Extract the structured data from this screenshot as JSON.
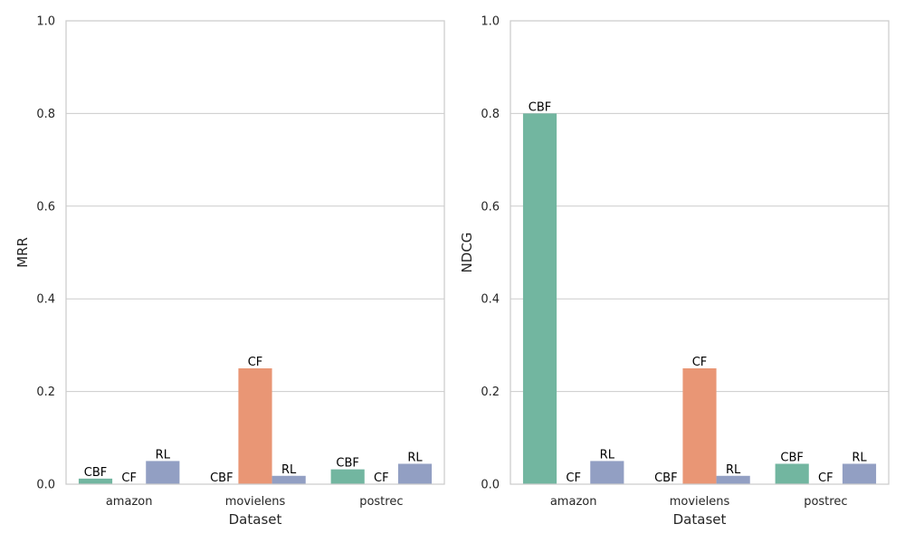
{
  "chart_data": [
    {
      "type": "bar",
      "xlabel": "Dataset",
      "ylabel": "MRR",
      "categories": [
        "amazon",
        "movielens",
        "postrec"
      ],
      "hue_order": [
        "CBF",
        "CF",
        "RL"
      ],
      "series": [
        {
          "name": "CBF",
          "values": [
            0.012,
            0.0,
            0.032
          ]
        },
        {
          "name": "CF",
          "values": [
            0.0,
            0.25,
            0.0
          ]
        },
        {
          "name": "RL",
          "values": [
            0.05,
            0.018,
            0.044
          ]
        }
      ],
      "ylim": [
        0,
        1.0
      ],
      "yticks": [
        "0.0",
        "0.2",
        "0.4",
        "0.6",
        "0.8",
        "1.0"
      ],
      "grid": "y",
      "legend": "none"
    },
    {
      "type": "bar",
      "xlabel": "Dataset",
      "ylabel": "NDCG",
      "categories": [
        "amazon",
        "movielens",
        "postrec"
      ],
      "hue_order": [
        "CBF",
        "CF",
        "RL"
      ],
      "series": [
        {
          "name": "CBF",
          "values": [
            0.8,
            0.0,
            0.044
          ]
        },
        {
          "name": "CF",
          "values": [
            0.0,
            0.25,
            0.0
          ]
        },
        {
          "name": "RL",
          "values": [
            0.05,
            0.018,
            0.044
          ]
        }
      ],
      "ylim": [
        0,
        1.0
      ],
      "yticks": [
        "0.0",
        "0.2",
        "0.4",
        "0.6",
        "0.8",
        "1.0"
      ],
      "grid": "y",
      "legend": "none"
    }
  ],
  "colors": {
    "CBF": "#72b6a0",
    "CF": "#e99675",
    "RL": "#929fc3"
  }
}
